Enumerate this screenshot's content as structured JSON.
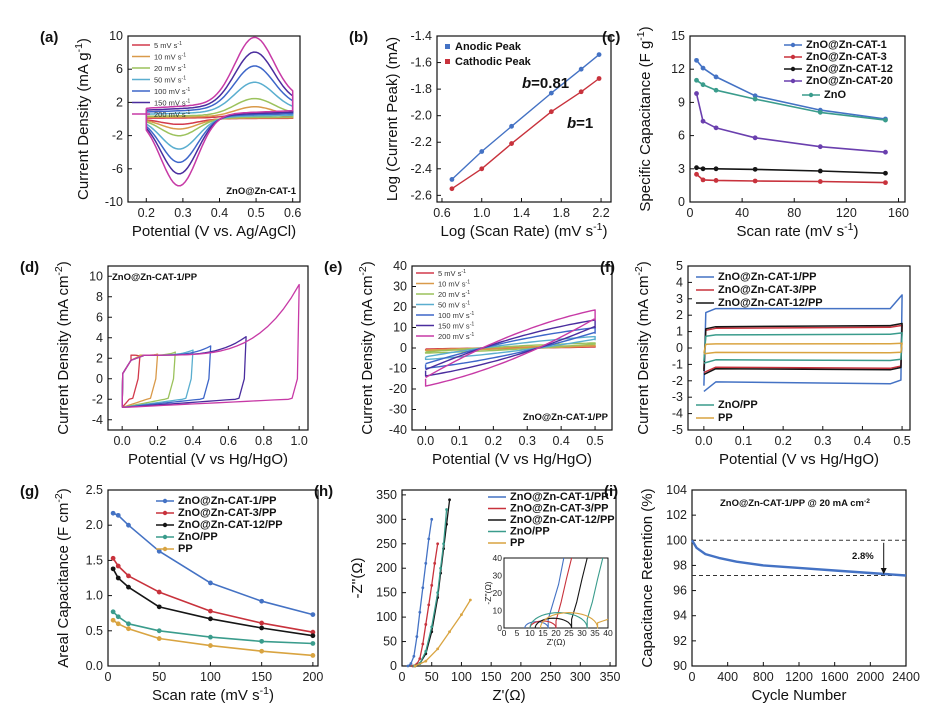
{
  "figure": {
    "colors": {
      "c1": "#4472c4",
      "c3": "#c8323c",
      "c12": "#151515",
      "c20": "#6a3fae",
      "zno": "#3a9c8c",
      "pp": "#d9a441",
      "r5": "#d23a4c",
      "r10": "#d99a4a",
      "r20": "#9bc25c",
      "r50": "#5aaecf",
      "r100": "#3d66c9",
      "r150": "#4a2d9e",
      "r200": "#c73aa6"
    }
  },
  "chart_data": [
    {
      "id": "a",
      "panel_label": "(a)",
      "type": "line",
      "xlabel": "Potential (V vs. Ag/AgCl)",
      "ylabel_html": "Current Density (mA g-1)",
      "ylabel_main": "Current Density (mA g",
      "ylabel_sup": "-1",
      "ylabel_tail": ")",
      "xlim": [
        0.15,
        0.62
      ],
      "ylim": [
        -10,
        10
      ],
      "xticks": [
        0.2,
        0.3,
        0.4,
        0.5,
        0.6
      ],
      "yticks": [
        -10,
        -6,
        -2,
        2,
        6,
        10
      ],
      "annotation": "ZnO@Zn-CAT-1",
      "legend_position": "top-left",
      "series": [
        {
          "name": "5 mV s",
          "sup": "-1",
          "color": "#d23a4c",
          "scale": 0.08
        },
        {
          "name": "10 mV s",
          "sup": "-1",
          "color": "#d99a4a",
          "scale": 0.15
        },
        {
          "name": "20 mV s",
          "sup": "-1",
          "color": "#9bc25c",
          "scale": 0.25
        },
        {
          "name": "50 mV s",
          "sup": "-1",
          "color": "#5aaecf",
          "scale": 0.45
        },
        {
          "name": "100 mV s",
          "sup": "-1",
          "color": "#3d66c9",
          "scale": 0.65
        },
        {
          "name": "150 mV s",
          "sup": "-1",
          "color": "#4a2d9e",
          "scale": 0.82
        },
        {
          "name": "200 mV s",
          "sup": "-1",
          "color": "#c73aa6",
          "scale": 1.0
        }
      ]
    },
    {
      "id": "b",
      "panel_label": "(b)",
      "type": "line",
      "xlabel_main": "Log (Scan Rate) (mV s",
      "xlabel_sup": "-1",
      "xlabel_tail": ")",
      "ylabel": "Log (Current Peak) (mA)",
      "xlim": [
        0.55,
        2.3
      ],
      "ylim": [
        -2.65,
        -1.4
      ],
      "xticks": [
        0.6,
        1.0,
        1.4,
        1.8,
        2.2
      ],
      "yticks": [
        -2.6,
        -2.4,
        -2.2,
        -2.0,
        -1.8,
        -1.6,
        -1.4
      ],
      "legend_position": "top-left",
      "series": [
        {
          "name": "Anodic Peak",
          "color": "#4472c4",
          "x": [
            0.7,
            1.0,
            1.3,
            1.7,
            2.0,
            2.18
          ],
          "y": [
            -2.48,
            -2.27,
            -2.08,
            -1.83,
            -1.65,
            -1.54
          ]
        },
        {
          "name": "Cathodic Peak",
          "color": "#c8323c",
          "x": [
            0.7,
            1.0,
            1.3,
            1.7,
            2.0,
            2.18
          ],
          "y": [
            -2.55,
            -2.4,
            -2.21,
            -1.97,
            -1.82,
            -1.72
          ]
        }
      ],
      "annotations": [
        {
          "text_b": "b",
          "text": "=0.81"
        },
        {
          "text_b": "b",
          "text": "=1"
        }
      ]
    },
    {
      "id": "c",
      "panel_label": "(c)",
      "type": "line",
      "xlabel_main": "Scan rate (mV s",
      "xlabel_sup": "-1",
      "xlabel_tail": ")",
      "ylabel_main": "Specific Capacitance (F g",
      "ylabel_sup": "-1",
      "ylabel_tail": ")",
      "xlim": [
        0,
        165
      ],
      "ylim": [
        0,
        15
      ],
      "xticks": [
        0,
        40,
        80,
        120,
        160
      ],
      "yticks": [
        0,
        3,
        6,
        9,
        12,
        15
      ],
      "legend_position": "top-right",
      "series": [
        {
          "name": "ZnO@Zn-CAT-1",
          "color": "#4472c4",
          "x": [
            5,
            10,
            20,
            50,
            100,
            150
          ],
          "y": [
            12.8,
            12.1,
            11.3,
            9.6,
            8.3,
            7.5
          ]
        },
        {
          "name": "ZnO@Zn-CAT-3",
          "color": "#c8323c",
          "x": [
            5,
            10,
            20,
            50,
            100,
            150
          ],
          "y": [
            2.5,
            2.0,
            1.95,
            1.9,
            1.85,
            1.75
          ]
        },
        {
          "name": "ZnO@Zn-CAT-12",
          "color": "#151515",
          "x": [
            5,
            10,
            20,
            50,
            100,
            150
          ],
          "y": [
            3.1,
            3.0,
            3.0,
            2.95,
            2.8,
            2.6
          ]
        },
        {
          "name": "ZnO@Zn-CAT-20",
          "color": "#6a3fae",
          "x": [
            5,
            10,
            20,
            50,
            100,
            150
          ],
          "y": [
            9.8,
            7.3,
            6.7,
            5.8,
            5.0,
            4.5
          ]
        },
        {
          "name": "ZnO",
          "color": "#3a9c8c",
          "x": [
            5,
            10,
            20,
            50,
            100,
            150
          ],
          "y": [
            11.0,
            10.6,
            10.1,
            9.3,
            8.1,
            7.4
          ]
        }
      ]
    },
    {
      "id": "d",
      "panel_label": "(d)",
      "type": "line",
      "xlabel": "Potential (V vs Hg/HgO)",
      "ylabel_main": "Current Density (mA cm",
      "ylabel_sup": "-2",
      "ylabel_tail": ")",
      "xlim": [
        -0.08,
        1.05
      ],
      "ylim": [
        -5,
        11
      ],
      "xticks": [
        0.0,
        0.2,
        0.4,
        0.6,
        0.8,
        1.0
      ],
      "yticks": [
        -4,
        -2,
        0,
        2,
        4,
        6,
        8,
        10
      ],
      "annotation": "ZnO@Zn-CAT-1/PP",
      "series": [
        {
          "color": "#d23a4c",
          "vmax": 0.1,
          "top": 2.2
        },
        {
          "color": "#d99a4a",
          "vmax": 0.2,
          "top": 2.4
        },
        {
          "color": "#9bc25c",
          "vmax": 0.3,
          "top": 2.6
        },
        {
          "color": "#5aaecf",
          "vmax": 0.4,
          "top": 2.8
        },
        {
          "color": "#3d66c9",
          "vmax": 0.5,
          "top": 3.2
        },
        {
          "color": "#4a2d9e",
          "vmax": 0.7,
          "top": 4.1
        },
        {
          "color": "#c73aa6",
          "vmax": 1.0,
          "top": 9.2
        }
      ]
    },
    {
      "id": "e",
      "panel_label": "(e)",
      "type": "line",
      "xlabel": "Potential (V vs Hg/HgO)",
      "ylabel_main": "Current Density (mA cm",
      "ylabel_sup": "-2",
      "ylabel_tail": ")",
      "xlim": [
        -0.04,
        0.55
      ],
      "ylim": [
        -40,
        40
      ],
      "xticks": [
        0.0,
        0.1,
        0.2,
        0.3,
        0.4,
        0.5
      ],
      "yticks": [
        -40,
        -30,
        -20,
        -10,
        0,
        10,
        20,
        30,
        40
      ],
      "annotation": "ZnO@Zn-CAT-1/PP",
      "legend_position": "top-left",
      "series": [
        {
          "name": "5 mV s",
          "sup": "-1",
          "color": "#d23a4c",
          "amp": 1.0
        },
        {
          "name": "10 mV s",
          "sup": "-1",
          "color": "#d99a4a",
          "amp": 2.0
        },
        {
          "name": "20 mV s",
          "sup": "-1",
          "color": "#9bc25c",
          "amp": 4.0
        },
        {
          "name": "50 mV s",
          "sup": "-1",
          "color": "#5aaecf",
          "amp": 9.0
        },
        {
          "name": "100 mV s",
          "sup": "-1",
          "color": "#3d66c9",
          "amp": 16.0
        },
        {
          "name": "150 mV s",
          "sup": "-1",
          "color": "#4a2d9e",
          "amp": 22.0
        },
        {
          "name": "200 mV s",
          "sup": "-1",
          "color": "#c73aa6",
          "amp": 30.0
        }
      ]
    },
    {
      "id": "f",
      "panel_label": "(f)",
      "type": "line",
      "xlabel": "Potential (V vs Hg/HgO)",
      "ylabel_main": "Current Density (mA cm",
      "ylabel_sup": "-2",
      "ylabel_tail": ")",
      "xlim": [
        -0.04,
        0.52
      ],
      "ylim": [
        -5,
        5
      ],
      "xticks": [
        0.0,
        0.1,
        0.2,
        0.3,
        0.4,
        0.5
      ],
      "yticks": [
        -5,
        -4,
        -3,
        -2,
        -1,
        0,
        1,
        2,
        3,
        4,
        5
      ],
      "legend_position": "top-left",
      "series": [
        {
          "name": "ZnO@Zn-CAT-1/PP",
          "color": "#4472c4",
          "top": 2.4,
          "bot": -2.3
        },
        {
          "name": "ZnO@Zn-CAT-3/PP",
          "color": "#c8323c",
          "top": 1.2,
          "bot": -1.3
        },
        {
          "name": "ZnO@Zn-CAT-12/PP",
          "color": "#151515",
          "top": 1.3,
          "bot": -1.4
        },
        {
          "name": "ZnO/PP",
          "color": "#3a9c8c",
          "top": 0.8,
          "bot": -0.8
        },
        {
          "name": "PP",
          "color": "#d9a441",
          "top": 0.25,
          "bot": -0.3
        }
      ]
    },
    {
      "id": "g",
      "panel_label": "(g)",
      "type": "line",
      "xlabel_main": "Scan rate (mV s",
      "xlabel_sup": "-1",
      "xlabel_tail": ")",
      "ylabel_main": "Areal Capacitance (F cm",
      "ylabel_sup": "-2",
      "ylabel_tail": ")",
      "xlim": [
        0,
        205
      ],
      "ylim": [
        0,
        2.5
      ],
      "xticks": [
        0,
        50,
        100,
        150,
        200
      ],
      "yticks": [
        0.0,
        0.5,
        1.0,
        1.5,
        2.0,
        2.5
      ],
      "legend_position": "top-right",
      "series": [
        {
          "name": "ZnO@Zn-CAT-1/PP",
          "color": "#4472c4",
          "x": [
            5,
            10,
            20,
            50,
            100,
            150,
            200
          ],
          "y": [
            2.17,
            2.14,
            2.0,
            1.63,
            1.18,
            0.92,
            0.73
          ]
        },
        {
          "name": "ZnO@Zn-CAT-3/PP",
          "color": "#c8323c",
          "x": [
            5,
            10,
            20,
            50,
            100,
            150,
            200
          ],
          "y": [
            1.53,
            1.42,
            1.28,
            1.05,
            0.78,
            0.61,
            0.48
          ]
        },
        {
          "name": "ZnO@Zn-CAT-12/PP",
          "color": "#151515",
          "x": [
            5,
            10,
            20,
            50,
            100,
            150,
            200
          ],
          "y": [
            1.38,
            1.25,
            1.12,
            0.84,
            0.67,
            0.54,
            0.43
          ]
        },
        {
          "name": "ZnO/PP",
          "color": "#3a9c8c",
          "x": [
            5,
            10,
            20,
            50,
            100,
            150,
            200
          ],
          "y": [
            0.77,
            0.7,
            0.6,
            0.5,
            0.41,
            0.35,
            0.32
          ]
        },
        {
          "name": "PP",
          "color": "#d9a441",
          "x": [
            5,
            10,
            20,
            50,
            100,
            150,
            200
          ],
          "y": [
            0.65,
            0.6,
            0.53,
            0.39,
            0.29,
            0.21,
            0.15
          ]
        }
      ]
    },
    {
      "id": "h",
      "panel_label": "(h)",
      "type": "line",
      "xlabel": "Z'(Ω)",
      "ylabel": "-Z''(Ω)",
      "xlim": [
        0,
        360
      ],
      "ylim": [
        0,
        360
      ],
      "xticks": [
        0,
        50,
        100,
        150,
        200,
        250,
        300,
        350
      ],
      "yticks": [
        0,
        50,
        100,
        150,
        200,
        250,
        300,
        350
      ],
      "legend_position": "top-right",
      "series": [
        {
          "name": "ZnO@Zn-CAT-1/PP",
          "color": "#4472c4",
          "x": [
            10,
            15,
            20,
            25,
            30,
            35,
            40,
            45,
            50
          ],
          "y": [
            0,
            5,
            20,
            60,
            110,
            160,
            210,
            260,
            300
          ]
        },
        {
          "name": "ZnO@Zn-CAT-3/PP",
          "color": "#c8323c",
          "x": [
            18,
            25,
            30,
            35,
            40,
            45,
            50,
            55,
            60
          ],
          "y": [
            0,
            4,
            15,
            45,
            85,
            125,
            165,
            210,
            250
          ]
        },
        {
          "name": "ZnO@Zn-CAT-12/PP",
          "color": "#151515",
          "x": [
            22,
            30,
            40,
            50,
            60,
            65,
            70,
            75,
            80
          ],
          "y": [
            0,
            5,
            25,
            70,
            140,
            190,
            240,
            290,
            340
          ]
        },
        {
          "name": "ZnO/PP",
          "color": "#3a9c8c",
          "x": [
            20,
            30,
            40,
            50,
            60,
            65,
            70,
            75
          ],
          "y": [
            0,
            5,
            30,
            80,
            150,
            200,
            250,
            320
          ]
        },
        {
          "name": "PP",
          "color": "#d9a441",
          "x": [
            22,
            40,
            60,
            80,
            100,
            115
          ],
          "y": [
            0,
            10,
            35,
            70,
            105,
            135
          ]
        }
      ],
      "inset": {
        "xlabel": "Z'(Ω)",
        "ylabel": "-Z''(Ω)",
        "xlim": [
          0,
          40
        ],
        "ylim": [
          0,
          40
        ],
        "xticks": [
          0,
          5,
          10,
          15,
          20,
          25,
          30,
          35,
          40
        ],
        "yticks": [
          0,
          10,
          20,
          30,
          40
        ]
      }
    },
    {
      "id": "i",
      "panel_label": "(i)",
      "type": "line",
      "xlabel": "Cycle Number",
      "ylabel": "Capacitance Retention (%)",
      "xlim": [
        0,
        2400
      ],
      "ylim": [
        90,
        104
      ],
      "xticks": [
        0,
        400,
        800,
        1200,
        1600,
        2000,
        2400
      ],
      "yticks": [
        90,
        92,
        94,
        96,
        98,
        100,
        102,
        104
      ],
      "annotation_main": "ZnO@Zn-CAT-1/PP @ 20 mA cm",
      "annotation_sup": "-2",
      "retention_note": "2.8%",
      "ref_lines": [
        100,
        97.2
      ],
      "series": [
        {
          "name": "ZnO@Zn-CAT-1/PP",
          "color": "#4472c4",
          "x": [
            0,
            50,
            150,
            300,
            500,
            800,
            1200,
            1600,
            2000,
            2400
          ],
          "y": [
            100,
            99.4,
            98.9,
            98.6,
            98.3,
            98.0,
            97.8,
            97.6,
            97.4,
            97.2
          ]
        }
      ]
    }
  ]
}
